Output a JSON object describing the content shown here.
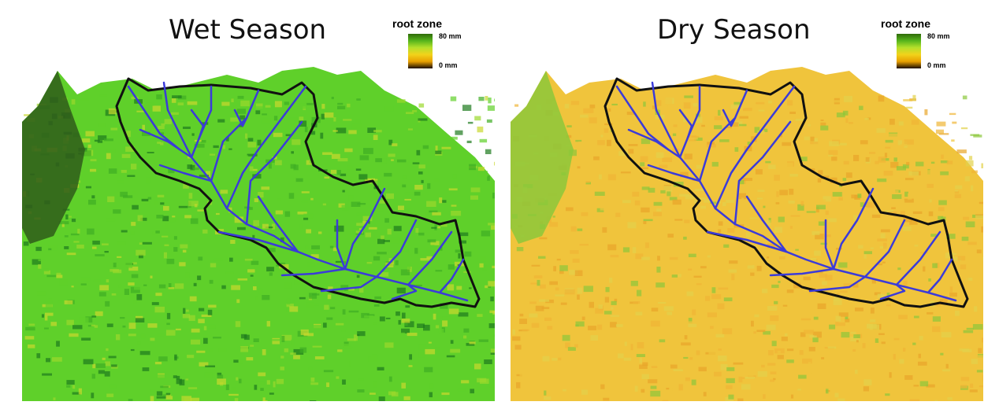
{
  "panels": [
    {
      "title": "Wet Season",
      "legend": {
        "title": "root zone",
        "max_label": "80 mm",
        "min_label": "0 mm"
      },
      "palette": [
        "#1e7a1e",
        "#3fae23",
        "#5fd02a",
        "#9bd82c",
        "#c9d92e"
      ]
    },
    {
      "title": "Dry Season",
      "legend": {
        "title": "root zone",
        "max_label": "80 mm",
        "min_label": "0 mm"
      },
      "palette": [
        "#e8a52a",
        "#efb534",
        "#f0c43c",
        "#e3d24a",
        "#8cc83a"
      ]
    }
  ],
  "legend_gradient": [
    "#2f6b0a",
    "#56b41c",
    "#b6e02b",
    "#f2d21a",
    "#e8a000",
    "#1a0d00"
  ],
  "colors": {
    "river": "#3b3bd9",
    "boundary": "#111111",
    "mountain_dark": "#2f5c1a"
  }
}
